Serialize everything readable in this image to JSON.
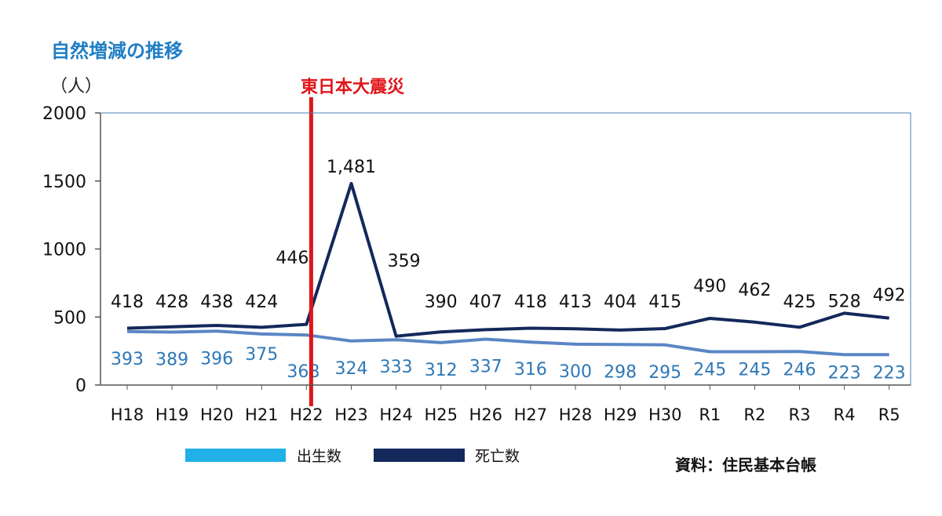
{
  "chart_data": {
    "type": "line",
    "title": "自然増減の推移",
    "unit_label": "（人）",
    "categories": [
      "H18",
      "H19",
      "H20",
      "H21",
      "H22",
      "H23",
      "H24",
      "H25",
      "H26",
      "H27",
      "H28",
      "H29",
      "H30",
      "R1",
      "R2",
      "R3",
      "R4",
      "R5"
    ],
    "yticks": [
      "0",
      "500",
      "1000",
      "1500",
      "2000"
    ],
    "ylim": [
      0,
      2000
    ],
    "series": [
      {
        "name": "出生数",
        "values": [
          393,
          389,
          396,
          375,
          368,
          324,
          333,
          312,
          337,
          316,
          300,
          298,
          295,
          245,
          245,
          246,
          223,
          223
        ],
        "labels": [
          "393",
          "389",
          "396",
          "375",
          "368",
          "324",
          "333",
          "312",
          "337",
          "316",
          "300",
          "298",
          "295",
          "245",
          "245",
          "246",
          "223",
          "223"
        ]
      },
      {
        "name": "死亡数",
        "values": [
          418,
          428,
          438,
          424,
          446,
          1481,
          359,
          390,
          407,
          418,
          413,
          404,
          415,
          490,
          462,
          425,
          528,
          492
        ],
        "labels": [
          "418",
          "428",
          "438",
          "424",
          "446",
          "1,481",
          "359",
          "390",
          "407",
          "418",
          "413",
          "404",
          "415",
          "490",
          "462",
          "425",
          "528",
          "492"
        ]
      }
    ],
    "annotation": {
      "text": "東日本大震災",
      "at": "H22"
    },
    "legend": "bottom",
    "source": "資料：住民基本台帳"
  },
  "colors": {
    "title": "#1f7ec4",
    "birth_line": "#5b86c5",
    "birth_labels": "#2e78b7",
    "birth_legend": "#22b0e8",
    "death": "#14285c",
    "annotation": "#e0141a",
    "axis": "#4a7fb3"
  }
}
